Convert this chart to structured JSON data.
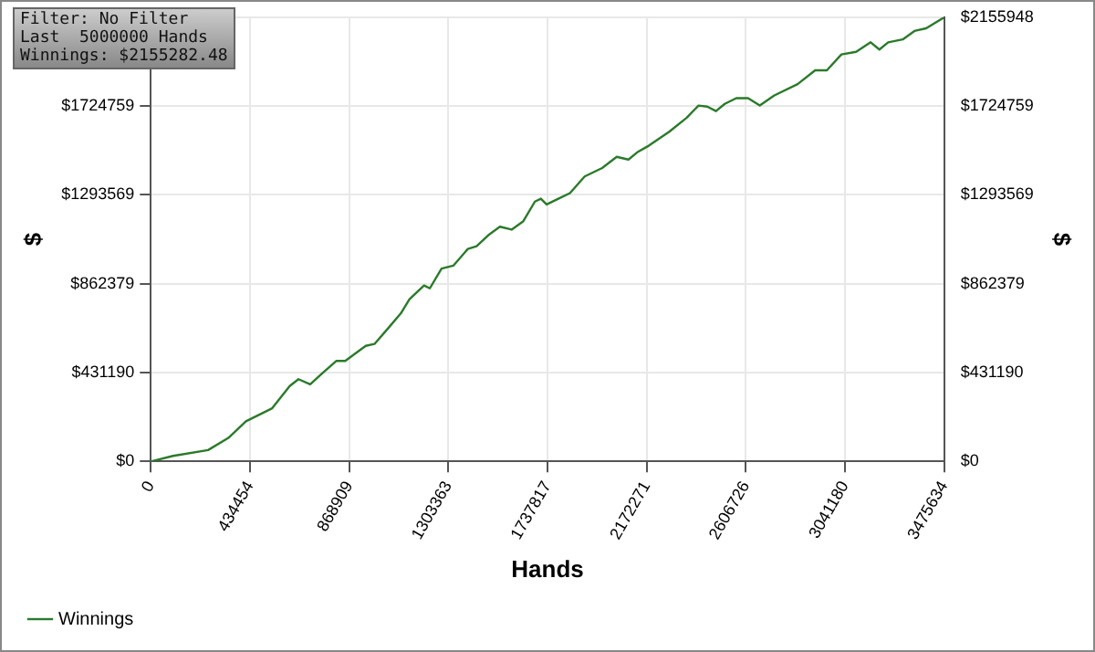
{
  "chart_data": {
    "type": "line",
    "xlabel": "Hands",
    "ylabel": "$",
    "y2label": "$",
    "annotations": [
      "Filter: No Filter",
      "Last  5000000 Hands",
      "Winnings: $2155282.48"
    ],
    "series": [
      {
        "name": "Winnings",
        "color": "#2a7a2a",
        "x": [
          0,
          97400,
          250900,
          339900,
          416600,
          531700,
          608500,
          646800,
          698200,
          749600,
          813300,
          851700,
          941400,
          979800,
          1043500,
          1094900,
          1133300,
          1197000,
          1222300,
          1273700,
          1325100,
          1388800,
          1427100,
          1478600,
          1529200,
          1580600,
          1632000,
          1682600,
          1708700,
          1734000,
          1785400,
          1836100,
          1900500,
          1977300,
          2041000,
          2092400,
          2130800,
          2181400,
          2271200,
          2347900,
          2399300,
          2437600,
          2476000,
          2514400,
          2565000,
          2616500,
          2667900,
          2731500,
          2833600,
          2910300,
          2961700,
          3025400,
          3089900,
          3153500,
          3191800,
          3230300,
          3294000,
          3345300,
          3396700,
          3475634
        ],
        "values": [
          0,
          27000,
          55000,
          114000,
          195000,
          258000,
          366000,
          399000,
          374000,
          426000,
          488000,
          488000,
          561000,
          570000,
          651000,
          718000,
          787000,
          854000,
          840000,
          936000,
          950000,
          1031000,
          1044000,
          1098000,
          1139000,
          1125000,
          1166000,
          1261000,
          1275000,
          1247000,
          1275000,
          1302000,
          1383000,
          1424000,
          1478000,
          1465000,
          1500000,
          1532000,
          1600000,
          1668000,
          1727000,
          1722000,
          1700000,
          1735000,
          1763000,
          1763000,
          1727000,
          1776000,
          1831000,
          1898000,
          1898000,
          1975000,
          1988000,
          2034000,
          1999000,
          2034000,
          2048000,
          2089000,
          2102000,
          2155000
        ]
      }
    ],
    "xlim": [
      0,
      3475634
    ],
    "xticks": [
      0,
      434454,
      868909,
      1303363,
      1737817,
      2172271,
      2606726,
      3041180,
      3475634
    ],
    "ylim": [
      0,
      2155948
    ],
    "yticks": [
      {
        "value": 0,
        "label": "$0"
      },
      {
        "value": 431190,
        "label": "$431190"
      },
      {
        "value": 862379,
        "label": "$862379"
      },
      {
        "value": 1293569,
        "label": "$1293569"
      },
      {
        "value": 1724759,
        "label": "$1724759"
      },
      {
        "value": 2155948,
        "label": null
      }
    ],
    "y2lim": [
      0,
      2155948
    ],
    "y2ticks": [
      {
        "value": 0,
        "label": "$0"
      },
      {
        "value": 431190,
        "label": "$431190"
      },
      {
        "value": 862379,
        "label": "$862379"
      },
      {
        "value": 1293569,
        "label": "$1293569"
      },
      {
        "value": 1724759,
        "label": "$1724759"
      },
      {
        "value": 2155948,
        "label": "$2155948"
      }
    ],
    "grid": true,
    "legend": "bottom left",
    "marker": "none",
    "line_style": "solid"
  }
}
